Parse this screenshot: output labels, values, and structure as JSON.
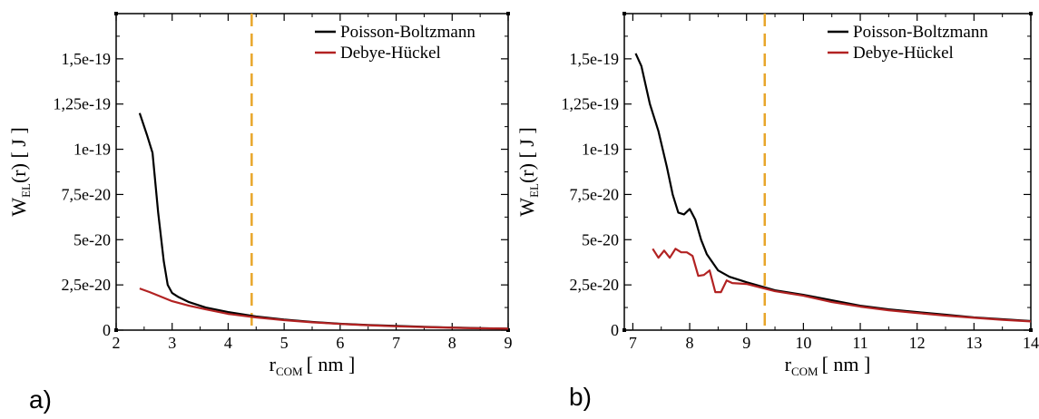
{
  "chart_data": [
    {
      "type": "line",
      "panel_label": "a)",
      "xlabel": "r",
      "xlabel_sub": "COM",
      "xlabel_unit": "[ nm ]",
      "ylabel": "W",
      "ylabel_sub": "EL",
      "ylabel_unit": "(r) [ J ]",
      "xlim": [
        2,
        9
      ],
      "ylim": [
        0,
        1.75e-19
      ],
      "x_ticks": [
        2,
        3,
        4,
        5,
        6,
        7,
        8,
        9
      ],
      "x_tick_labels": [
        "2",
        "3",
        "4",
        "5",
        "6",
        "7",
        "8",
        "9"
      ],
      "y_ticks": [
        0,
        2.5e-20,
        5e-20,
        7.5e-20,
        1e-19,
        1.25e-19,
        1.5e-19
      ],
      "y_tick_labels": [
        "0",
        "2,5e-20",
        "5e-20",
        "7,5e-20",
        "1e-19",
        "1,25e-19",
        "1,5e-19"
      ],
      "vline": {
        "x": 4.42,
        "color": "#e8a62a",
        "style": "dashed"
      },
      "legend_position": "top-right",
      "series": [
        {
          "name": "Poisson-Boltzmann",
          "color": "#000000",
          "x": [
            2.42,
            2.55,
            2.65,
            2.75,
            2.85,
            2.92,
            3.0,
            3.1,
            3.3,
            3.6,
            4.0,
            4.5,
            5.0,
            5.5,
            6.0,
            6.5,
            7.0,
            7.5,
            8.0,
            8.5,
            9.0
          ],
          "y": [
            1.2e-19,
            1.08e-19,
            9.8e-20,
            6.5e-20,
            3.8e-20,
            2.5e-20,
            2.05e-20,
            1.85e-20,
            1.55e-20,
            1.25e-20,
            1e-20,
            7.5e-21,
            5.8e-21,
            4.5e-21,
            3.5e-21,
            2.8e-21,
            2.3e-21,
            1.8e-21,
            1.4e-21,
            1.1e-21,
            8e-22
          ]
        },
        {
          "name": "Debye-Hückel",
          "color": "#b22222",
          "x": [
            2.42,
            2.6,
            2.8,
            3.0,
            3.3,
            3.6,
            4.0,
            4.5,
            5.0,
            5.5,
            6.0,
            6.5,
            7.0,
            7.5,
            8.0,
            8.5,
            9.0
          ],
          "y": [
            2.3e-20,
            2.1e-20,
            1.85e-20,
            1.6e-20,
            1.35e-20,
            1.15e-20,
            9e-21,
            7e-21,
            5.5e-21,
            4.3e-21,
            3.4e-21,
            2.7e-21,
            2.1e-21,
            1.7e-21,
            1.3e-21,
            1e-21,
            8e-22
          ]
        }
      ]
    },
    {
      "type": "line",
      "panel_label": "b)",
      "xlabel": "r",
      "xlabel_sub": "COM",
      "xlabel_unit": "[ nm ]",
      "ylabel": "W",
      "ylabel_sub": "EL",
      "ylabel_unit": "(r) [ J ]",
      "xlim": [
        6.85,
        14
      ],
      "ylim": [
        0,
        1.75e-19
      ],
      "x_ticks": [
        7,
        8,
        9,
        10,
        11,
        12,
        13,
        14
      ],
      "x_tick_labels": [
        "7",
        "8",
        "9",
        "10",
        "11",
        "12",
        "13",
        "14"
      ],
      "y_ticks": [
        0,
        2.5e-20,
        5e-20,
        7.5e-20,
        1e-19,
        1.25e-19,
        1.5e-19
      ],
      "y_tick_labels": [
        "0",
        "2,5e-20",
        "5e-20",
        "7,5e-20",
        "1e-19",
        "1,25e-19",
        "1,5e-19"
      ],
      "vline": {
        "x": 9.32,
        "color": "#e8a62a",
        "style": "dashed"
      },
      "legend_position": "top-right",
      "series": [
        {
          "name": "Poisson-Boltzmann",
          "color": "#000000",
          "x": [
            7.05,
            7.15,
            7.3,
            7.45,
            7.6,
            7.7,
            7.8,
            7.9,
            8.0,
            8.1,
            8.2,
            8.3,
            8.5,
            8.7,
            9.0,
            9.5,
            10.0,
            10.5,
            11.0,
            11.5,
            12.0,
            12.5,
            13.0,
            13.5,
            14.0
          ],
          "y": [
            1.53e-19,
            1.46e-19,
            1.25e-19,
            1.1e-19,
            9e-20,
            7.5e-20,
            6.5e-20,
            6.4e-20,
            6.7e-20,
            6.1e-20,
            5e-20,
            4.2e-20,
            3.3e-20,
            2.95e-20,
            2.65e-20,
            2.2e-20,
            1.95e-20,
            1.65e-20,
            1.35e-20,
            1.15e-20,
            1e-20,
            8.5e-21,
            7e-21,
            6e-21,
            5e-21
          ]
        },
        {
          "name": "Debye-Hückel",
          "color": "#b22222",
          "x": [
            7.35,
            7.45,
            7.55,
            7.65,
            7.75,
            7.85,
            7.95,
            8.05,
            8.15,
            8.25,
            8.35,
            8.45,
            8.55,
            8.65,
            8.75,
            9.0,
            9.5,
            10.0,
            10.5,
            11.0,
            11.5,
            12.0,
            12.5,
            13.0,
            13.5,
            14.0
          ],
          "y": [
            4.5e-20,
            4e-20,
            4.4e-20,
            4e-20,
            4.5e-20,
            4.3e-20,
            4.3e-20,
            4.1e-20,
            3e-20,
            3.05e-20,
            3.3e-20,
            2.1e-20,
            2.1e-20,
            2.75e-20,
            2.6e-20,
            2.55e-20,
            2.15e-20,
            1.9e-20,
            1.55e-20,
            1.3e-20,
            1.1e-20,
            9.5e-21,
            8e-21,
            6.8e-21,
            5.7e-21,
            4.8e-21
          ]
        }
      ]
    }
  ]
}
